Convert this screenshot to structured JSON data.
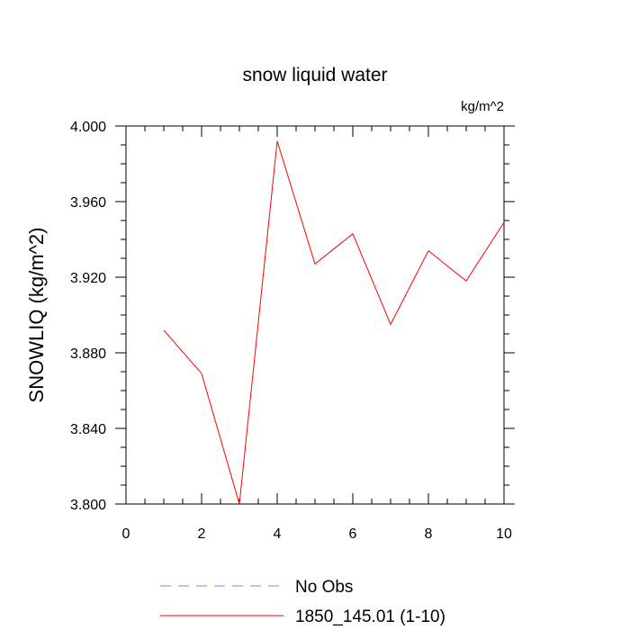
{
  "chart_data": {
    "type": "line",
    "title": "snow liquid water",
    "units": "kg/m^2",
    "xlabel": "",
    "ylabel": "SNOWLIQ  (kg/m^2)",
    "xlim": [
      0,
      10
    ],
    "ylim": [
      3.8,
      4.0
    ],
    "x_ticks": [
      0,
      2,
      4,
      6,
      8,
      10
    ],
    "x_tick_labels": [
      "0",
      "2",
      "4",
      "6",
      "8",
      "10"
    ],
    "y_ticks": [
      3.8,
      3.84,
      3.88,
      3.92,
      3.96,
      4.0
    ],
    "y_tick_labels": [
      "3.800",
      "3.840",
      "3.880",
      "3.920",
      "3.960",
      "4.000"
    ],
    "grid": false,
    "legend_position": "bottom",
    "series": [
      {
        "name": "No Obs",
        "color": "#7f7fff",
        "style": "dashed",
        "x": [],
        "values": []
      },
      {
        "name": "1850_145.01 (1-10)",
        "color": "#ff0000",
        "style": "solid",
        "x": [
          1,
          2,
          3,
          4,
          5,
          6,
          7,
          8,
          9,
          10
        ],
        "values": [
          3.892,
          3.869,
          3.8,
          3.992,
          3.927,
          3.943,
          3.895,
          3.934,
          3.918,
          3.949
        ]
      }
    ]
  }
}
